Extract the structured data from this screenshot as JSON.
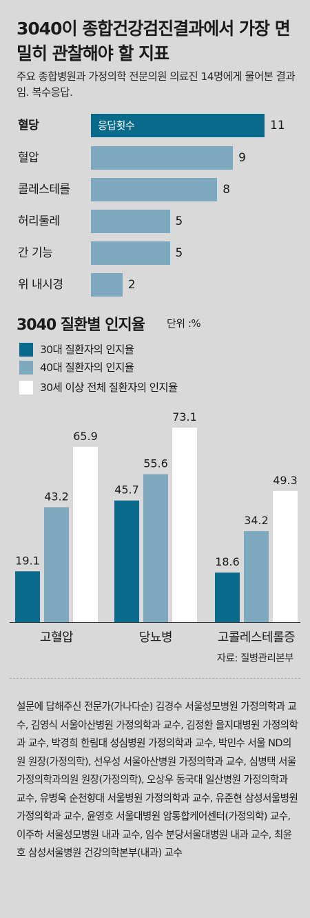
{
  "header": {
    "title": "3040이 종합건강검진결과에서 가장 면밀히 관찰해야 할 지표",
    "subtitle": "주요 종합병원과 가정의학 전문의원 의료진 14명에게 물어본 결과임. 복수응답."
  },
  "chart_data": [
    {
      "type": "bar",
      "orientation": "horizontal",
      "series_label": "응답횟수",
      "categories": [
        "혈당",
        "혈압",
        "콜레스테롤",
        "허리둘레",
        "간 기능",
        "위 내시경"
      ],
      "values": [
        11,
        9,
        8,
        5,
        5,
        2
      ],
      "xlim": [
        0,
        11
      ],
      "grid": false,
      "colors": {
        "primary": "#0a6a8c",
        "secondary": "#7ea8be"
      }
    },
    {
      "type": "bar",
      "title": "3040 질환별 인지율",
      "unit": "단위 :%",
      "categories": [
        "고혈압",
        "당뇨병",
        "고콜레스테롤증"
      ],
      "series": [
        {
          "name": "30대 질환자의 인지율",
          "values": [
            19.1,
            45.7,
            18.6
          ],
          "color": "#0a6a8c"
        },
        {
          "name": "40대 질환자의 인지율",
          "values": [
            43.2,
            55.6,
            34.2
          ],
          "color": "#7ea8be"
        },
        {
          "name": "30세 이상 전체 질환자의 인지율",
          "values": [
            65.9,
            73.1,
            49.3
          ],
          "color": "#ffffff"
        }
      ],
      "ylim": [
        0,
        73.1
      ],
      "grid": false,
      "legend": "top-left",
      "source": "자료: 질병관리본부"
    }
  ],
  "footer": {
    "experts": "설문에 답해주신 전문가(가나다순) 김경수 서울성모병원 가정의학과 교수, 김영식 서울아산병원 가정의학과 교수, 김정환 을지대병원 가정의학과 교수, 박경희 한림대 성심병원 가정의학과 교수, 박민수 서울 ND의원 원장(가정의학), 선우성 서울아산병원 가정의학과 교수, 심병택 서울가정의학과의원 원장(가정의학), 오상우 동국대 일산병원 가정의학과 교수, 유병욱 순천향대 서울병원 가정의학과 교수, 유준현 삼성서울병원 가정의학과 교수, 윤영호 서울대병원 암통합케어센터(가정의학) 교수, 이주하 서울성모병원 내과 교수, 임수 분당서울대병원 내과 교수, 최윤호 삼성서울병원 건강의학본부(내과) 교수"
  }
}
